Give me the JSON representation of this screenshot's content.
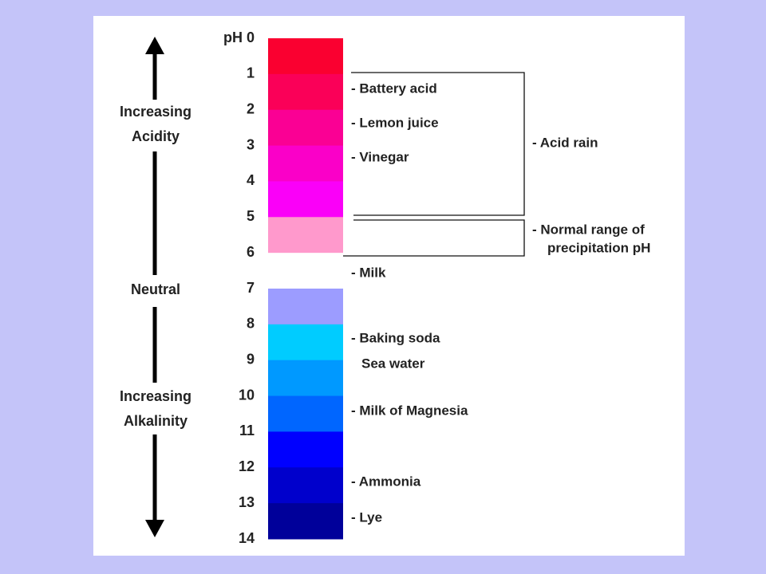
{
  "scale": {
    "labels": [
      "pH 0",
      "1",
      "2",
      "3",
      "4",
      "5",
      "6",
      "7",
      "8",
      "9",
      "10",
      "11",
      "12",
      "13",
      "14"
    ]
  },
  "left_labels": {
    "acidity": [
      "Increasing",
      "Acidity"
    ],
    "neutral": "Neutral",
    "alkalinity": [
      "Increasing",
      "Alkalinity"
    ]
  },
  "substances": [
    "- Battery acid",
    "- Lemon juice",
    "- Vinegar",
    "- Milk",
    "- Baking soda",
    "Sea water",
    "- Milk of Magnesia",
    "- Ammonia",
    "- Lye"
  ],
  "brackets": {
    "acid_rain": "- Acid rain",
    "normal_range": [
      "- Normal range of",
      "precipitation pH"
    ]
  }
}
